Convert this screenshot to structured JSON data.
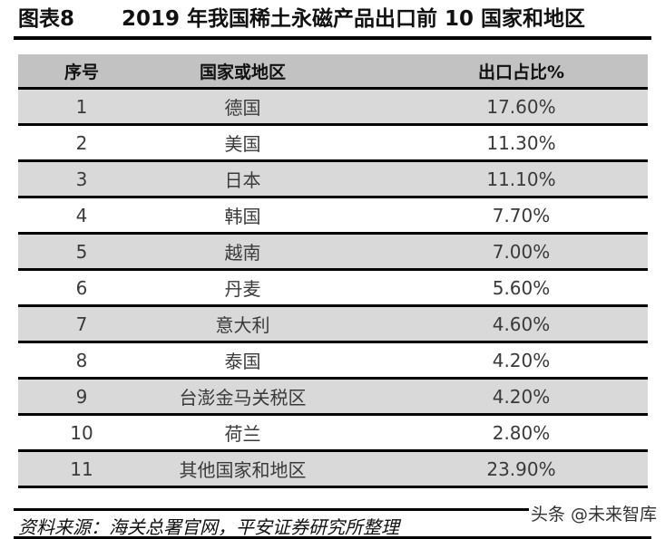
{
  "figure": {
    "label": "图表8",
    "title": "2019 年我国稀土永磁产品出口前 10 国家和地区"
  },
  "table": {
    "headers": [
      "序号",
      "国家或地区",
      "出口占比%"
    ],
    "rows": [
      {
        "no": "1",
        "region": "德国",
        "share": "17.60%"
      },
      {
        "no": "2",
        "region": "美国",
        "share": "11.30%"
      },
      {
        "no": "3",
        "region": "日本",
        "share": "11.10%"
      },
      {
        "no": "4",
        "region": "韩国",
        "share": "7.70%"
      },
      {
        "no": "5",
        "region": "越南",
        "share": "7.00%"
      },
      {
        "no": "6",
        "region": "丹麦",
        "share": "5.60%"
      },
      {
        "no": "7",
        "region": "意大利",
        "share": "4.60%"
      },
      {
        "no": "8",
        "region": "泰国",
        "share": "4.20%"
      },
      {
        "no": "9",
        "region": "台澎金马关税区",
        "share": "4.20%"
      },
      {
        "no": "10",
        "region": "荷兰",
        "share": "2.80%"
      },
      {
        "no": "11",
        "region": "其他国家和地区",
        "share": "23.90%"
      }
    ]
  },
  "source": "资料来源：海关总署官网，平安证券研究所整理",
  "watermark": "头条 @未来智库",
  "colors": {
    "header_bg": "#c2c2c2",
    "shaded_row_bg": "#d9d9d9",
    "rule": "#000000"
  }
}
